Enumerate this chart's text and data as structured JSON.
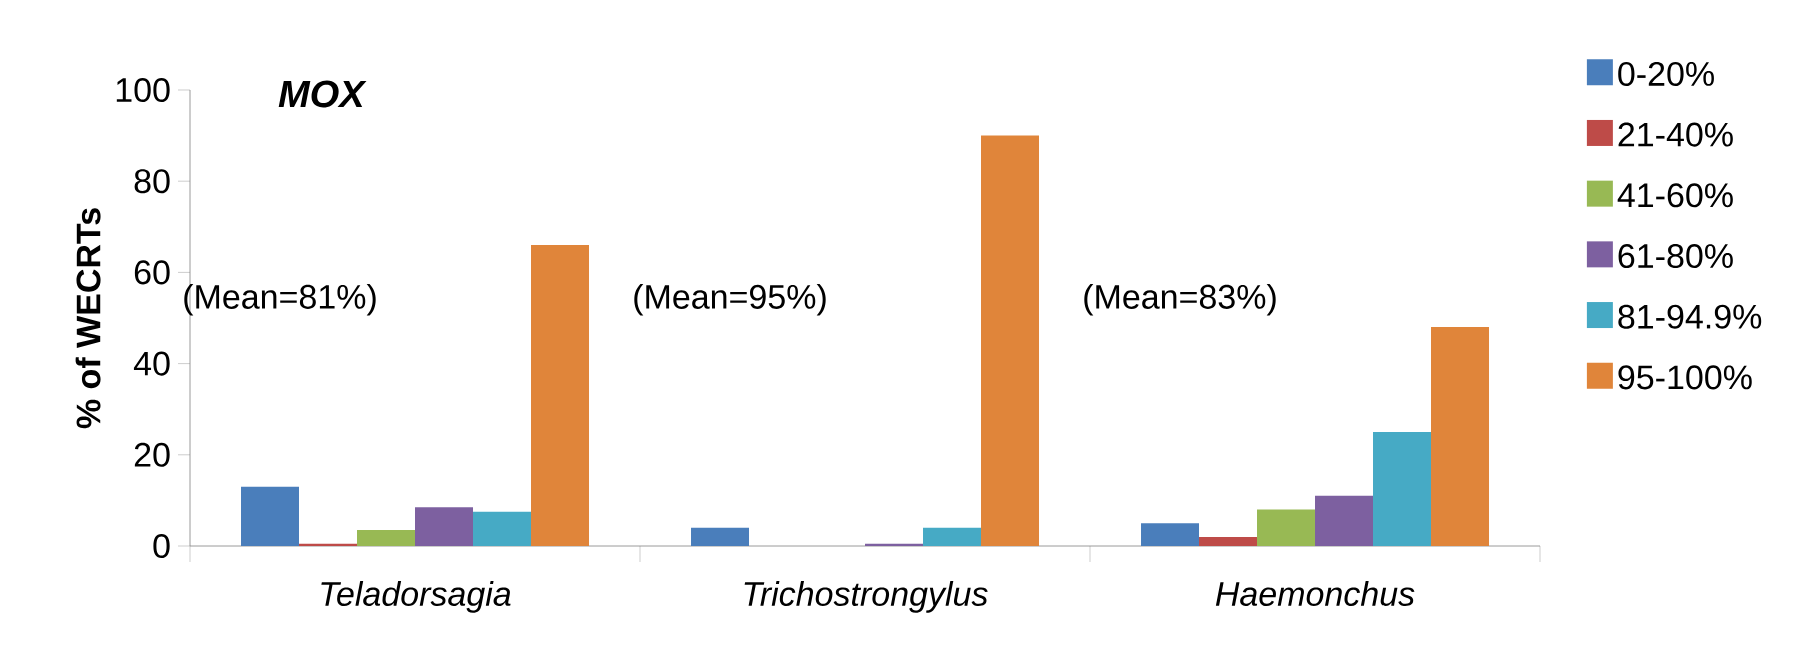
{
  "chart_data": {
    "type": "bar",
    "title": "MOX",
    "ylabel": "% of WECRTs",
    "categories": [
      "Teladorsagia",
      "Trichostrongylus",
      "Haemonchus"
    ],
    "series": [
      {
        "name": "0-20%",
        "color": "#4a7ebb",
        "values": [
          13,
          4,
          5
        ]
      },
      {
        "name": "21-40%",
        "color": "#be4b48",
        "values": [
          0.5,
          0,
          2
        ]
      },
      {
        "name": "41-60%",
        "color": "#98b954",
        "values": [
          3.5,
          0,
          8
        ]
      },
      {
        "name": "61-80%",
        "color": "#7d60a0",
        "values": [
          8.5,
          0.5,
          11
        ]
      },
      {
        "name": "81-94.9%",
        "color": "#46aac5",
        "values": [
          7.5,
          4,
          25
        ]
      },
      {
        "name": "95-100%",
        "color": "#e0853a",
        "values": [
          66,
          90,
          48
        ]
      }
    ],
    "annotations": [
      "(Mean=81%)",
      "(Mean=95%)",
      "(Mean=83%)"
    ],
    "ylim": [
      0,
      100
    ],
    "yticks": [
      0,
      20,
      40,
      60,
      80,
      100
    ],
    "legend": "right"
  }
}
